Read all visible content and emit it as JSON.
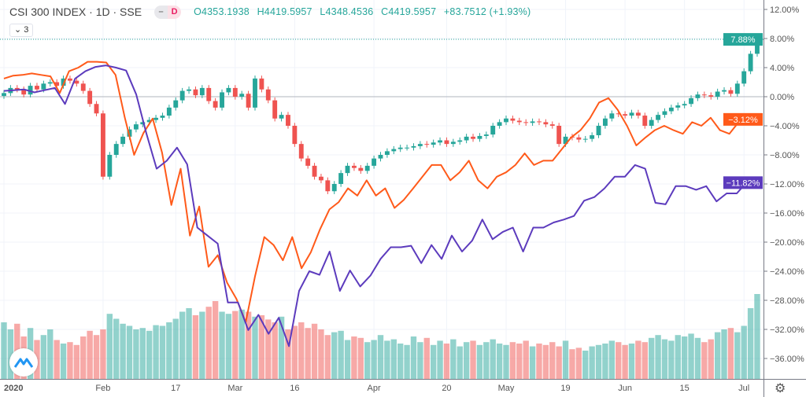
{
  "header": {
    "symbol": "CSI 300 INDEX · 1D · SSE",
    "interval_badge": "D",
    "open": "O4353.1938",
    "high": "H4419.5957",
    "low": "L4348.4536",
    "close": "C4419.5957",
    "change": "+83.7512 (+1.93%)",
    "indicators_toggle": "3"
  },
  "colors": {
    "up": "#26a69a",
    "down": "#ef5350",
    "orange": "#ff5a1a",
    "purple": "#5c3bbd"
  },
  "chart_data": {
    "type": "candlestick",
    "title": "CSI 300 INDEX · 1D · SSE",
    "yaxis": {
      "unit": "%",
      "range": [
        -38,
        13
      ],
      "ticks": [
        12,
        8,
        4,
        0,
        -4,
        -8,
        -12,
        -16,
        -20,
        -24,
        -28,
        -32,
        -36
      ],
      "tick_labels": [
        "12.00%",
        "8.00%",
        "4.00%",
        "0.00%",
        "-4.00%",
        "-8.00%",
        "-12.00%",
        "-16.00%",
        "-20.00%",
        "-24.00%",
        "-28.00%",
        "-32.00%",
        "-36.00%"
      ]
    },
    "xaxis": {
      "ticks": [
        {
          "bar": 0,
          "label": "2020"
        },
        {
          "bar": 15,
          "label": "Feb"
        },
        {
          "bar": 26,
          "label": "17"
        },
        {
          "bar": 35,
          "label": "Mar"
        },
        {
          "bar": 44,
          "label": "16"
        },
        {
          "bar": 56,
          "label": "Apr"
        },
        {
          "bar": 67,
          "label": "20"
        },
        {
          "bar": 76,
          "label": "May"
        },
        {
          "bar": 85,
          "label": "19"
        },
        {
          "bar": 94,
          "label": "Jun"
        },
        {
          "bar": 103,
          "label": "15"
        },
        {
          "bar": 112,
          "label": "Jul"
        }
      ]
    },
    "candles_close_pct": [
      0.5,
      1.2,
      1.0,
      0.3,
      1.5,
      1.0,
      1.8,
      2.0,
      1.5,
      2.5,
      2.2,
      1.8,
      0.8,
      -1.0,
      -2.3,
      -11.0,
      -8.0,
      -6.5,
      -5.5,
      -4.5,
      -3.8,
      -3.5,
      -3.2,
      -2.9,
      -2.6,
      -1.5,
      -0.5,
      0.8,
      1.0,
      0.2,
      1.2,
      -0.6,
      -1.5,
      0.6,
      1.2,
      0,
      0.4,
      -1.5,
      2.5,
      1.0,
      -0.5,
      -3.0,
      -2.5,
      -4.0,
      -6.5,
      -8.5,
      -9.5,
      -11.0,
      -11.5,
      -13.0,
      -12.0,
      -10.5,
      -9.5,
      -9.8,
      -10.2,
      -9.5,
      -8.5,
      -8.0,
      -7.5,
      -7.2,
      -7.0,
      -7.0,
      -6.8,
      -6.5,
      -6.6,
      -6.3,
      -6.0,
      -6.5,
      -6.2,
      -6.0,
      -5.5,
      -5.8,
      -5.4,
      -5.2,
      -4.0,
      -3.5,
      -3.0,
      -3.3,
      -3.5,
      -3.6,
      -3.4,
      -3.5,
      -3.8,
      -4.0,
      -6.5,
      -5.5,
      -5.6,
      -5.9,
      -5.8,
      -5.3,
      -4.0,
      -3.0,
      -2.3,
      -2.4,
      -2.6,
      -2.2,
      -2.6,
      -4.0,
      -3.2,
      -2.5,
      -2.0,
      -1.5,
      -1.2,
      -1.0,
      -0.2,
      0.3,
      0.2,
      0.0,
      0.7,
      0.9,
      0.4,
      1.8,
      3.5,
      5.9,
      7.88
    ],
    "volume": [
      80,
      70,
      78,
      60,
      72,
      55,
      62,
      70,
      55,
      50,
      52,
      48,
      60,
      68,
      62,
      70,
      92,
      85,
      78,
      75,
      70,
      72,
      68,
      76,
      75,
      80,
      85,
      95,
      100,
      90,
      95,
      102,
      110,
      95,
      92,
      96,
      98,
      95,
      88,
      90,
      84,
      80,
      88,
      70,
      75,
      80,
      72,
      78,
      70,
      62,
      66,
      68,
      55,
      60,
      58,
      52,
      55,
      62,
      54,
      56,
      50,
      48,
      60,
      52,
      58,
      48,
      54,
      50,
      56,
      46,
      52,
      54,
      48,
      52,
      56,
      50,
      48,
      52,
      50,
      54,
      46,
      50,
      48,
      52,
      46,
      54,
      42,
      44,
      40,
      46,
      48,
      50,
      54,
      52,
      48,
      50,
      54,
      52,
      58,
      62,
      56,
      54,
      62,
      60,
      64,
      58,
      52,
      56,
      66,
      70,
      72,
      66,
      75,
      100,
      120
    ],
    "series": [
      {
        "name": "compare-orange",
        "last_label": "-3.12%",
        "values": [
          2.5,
          2.9,
          3.0,
          3.2,
          3.0,
          2.8,
          0.5,
          3.5,
          4.0,
          4.8,
          4.8,
          4.7,
          3.0,
          -2.9,
          -8.0,
          -5.0,
          -3.0,
          -7.7,
          -14.9,
          -9.9,
          -19.1,
          -15.1,
          -23.4,
          -21.8,
          -25.6,
          -27.8,
          -31.0,
          -24.7,
          -19.3,
          -20.4,
          -22.5,
          -19.3,
          -23.6,
          -21.4,
          -18.2,
          -15.5,
          -14.5,
          -12.6,
          -13.6,
          -11.5,
          -13.6,
          -12.6,
          -15.3,
          -14.2,
          -12.6,
          -11.0,
          -9.4,
          -9.4,
          -11.5,
          -10.4,
          -8.8,
          -11.5,
          -12.6,
          -11.0,
          -10.4,
          -9.4,
          -7.8,
          -9.4,
          -8.8,
          -8.8,
          -7.2,
          -5.6,
          -4.6,
          -3.0,
          -0.8,
          -0.2,
          -1.8,
          -4.0,
          -6.7,
          -5.6,
          -4.6,
          -4.0,
          -4.6,
          -5.1,
          -3.5,
          -4.0,
          -2.9,
          -4.6,
          -5.1,
          -3.5,
          -3.1,
          -3.12
        ]
      },
      {
        "name": "compare-purple",
        "last_label": "-11.82%",
        "values": [
          0.8,
          0.9,
          1.0,
          0.6,
          0.9,
          1.2,
          -1.0,
          2.5,
          3.5,
          4.1,
          4.3,
          4.0,
          3.6,
          0.3,
          -5.1,
          -9.9,
          -8.8,
          -7.0,
          -9.3,
          -18.0,
          -19.1,
          -20.2,
          -28.3,
          -28.3,
          -32.1,
          -30.0,
          -32.6,
          -30.4,
          -34.3,
          -26.7,
          -24.0,
          -24.5,
          -21.3,
          -26.7,
          -23.9,
          -26.1,
          -24.6,
          -22.3,
          -20.7,
          -20.7,
          -20.5,
          -22.9,
          -20.4,
          -22.3,
          -19.1,
          -21.3,
          -19.8,
          -16.9,
          -19.6,
          -18.6,
          -18.0,
          -21.3,
          -18.0,
          -18.0,
          -17.3,
          -16.9,
          -16.4,
          -14.3,
          -13.8,
          -12.6,
          -11.0,
          -11.0,
          -9.4,
          -9.9,
          -14.6,
          -14.8,
          -12.3,
          -12.3,
          -12.8,
          -12.3,
          -14.4,
          -13.3,
          -13.3,
          -11.7,
          -11.82
        ]
      }
    ],
    "last_price_label": "7.88%"
  }
}
